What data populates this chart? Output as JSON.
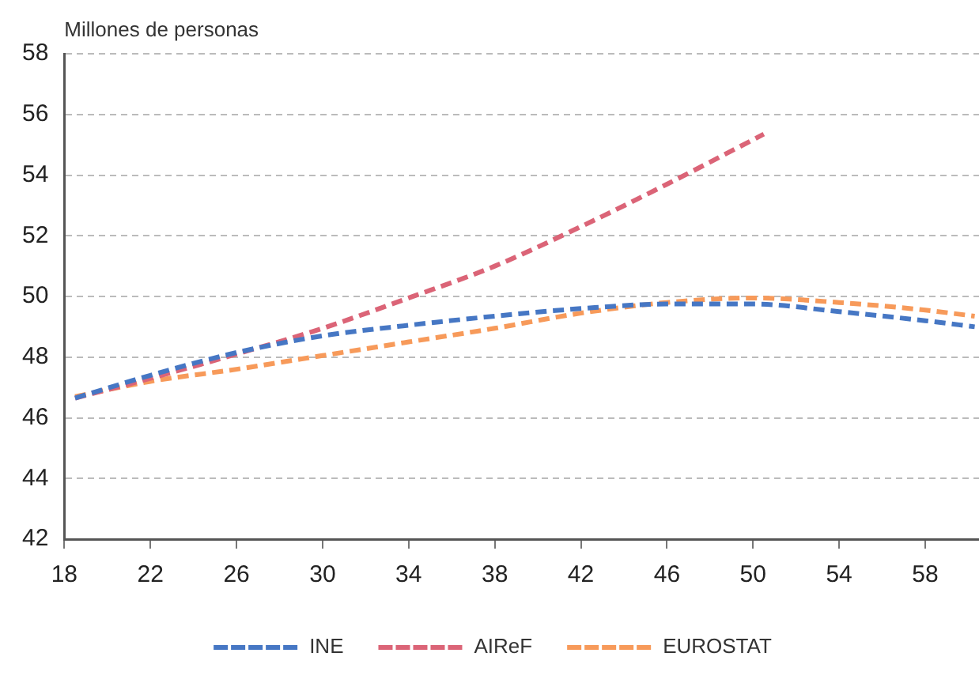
{
  "chart_data": {
    "type": "line",
    "ylabel": "Millones de personas",
    "xlim": [
      18,
      60.5
    ],
    "xticks": [
      18,
      22,
      26,
      30,
      34,
      38,
      42,
      46,
      50,
      54,
      58
    ],
    "ylim": [
      42,
      58
    ],
    "yticks": [
      42,
      44,
      46,
      48,
      50,
      52,
      54,
      56,
      58
    ],
    "grid": "y",
    "legend": "bottom",
    "line_style": "dashed",
    "marker": "none",
    "series": [
      {
        "name": "INE",
        "color": "#4677c4",
        "x": [
          18.5,
          22,
          26,
          30,
          34,
          38,
          42,
          46,
          50,
          54,
          58,
          60.3
        ],
        "values": [
          46.65,
          47.4,
          48.15,
          48.7,
          49.05,
          49.35,
          49.6,
          49.75,
          49.75,
          49.5,
          49.2,
          49.0
        ]
      },
      {
        "name": "AIReF",
        "color": "#db6477",
        "x": [
          18.5,
          22,
          26,
          30,
          34,
          38,
          42,
          46,
          50.5
        ],
        "values": [
          46.65,
          47.3,
          48.1,
          48.95,
          49.95,
          51.0,
          52.3,
          53.7,
          55.35
        ]
      },
      {
        "name": "EUROSTAT",
        "color": "#f79a5a",
        "x": [
          18.5,
          22,
          26,
          30,
          34,
          38,
          42,
          46,
          50,
          54,
          58,
          60.3
        ],
        "values": [
          46.7,
          47.2,
          47.6,
          48.05,
          48.5,
          48.95,
          49.45,
          49.8,
          49.95,
          49.8,
          49.55,
          49.35
        ]
      }
    ]
  }
}
